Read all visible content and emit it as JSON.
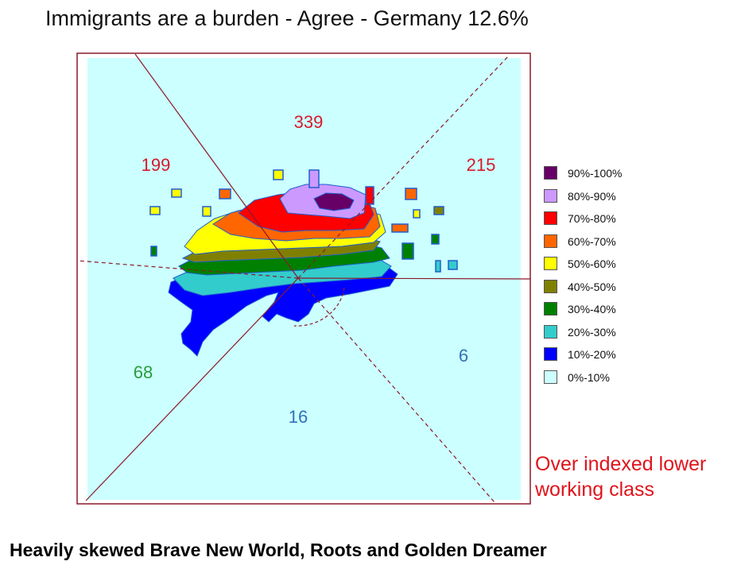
{
  "header": {
    "title": "Immigrants are a burden - Agree - Germany 12.6%"
  },
  "footer": {
    "text": "Heavily skewed Brave New World, Roots and Golden Dreamer"
  },
  "annotation": {
    "text": "Over indexed lower working class"
  },
  "chart_data": {
    "type": "heatmap",
    "title": "Immigrants are a burden - Agree - Germany 12.6%",
    "background_color": "#ccffff",
    "segment_counts": [
      {
        "value": "339",
        "color": "#d8192c"
      },
      {
        "value": "199",
        "color": "#d8192c"
      },
      {
        "value": "215",
        "color": "#d8192c"
      },
      {
        "value": "68",
        "color": "#2a9d3a"
      },
      {
        "value": "16",
        "color": "#2e73b8"
      },
      {
        "value": "6",
        "color": "#2e73b8"
      }
    ],
    "legend": {
      "placement": "right",
      "items": [
        {
          "label": "90%-100%",
          "color": "#660066"
        },
        {
          "label": "80%-90%",
          "color": "#cc99ff"
        },
        {
          "label": "70%-80%",
          "color": "#ff0000"
        },
        {
          "label": "60%-70%",
          "color": "#ff6600"
        },
        {
          "label": "50%-60%",
          "color": "#ffff00"
        },
        {
          "label": "40%-50%",
          "color": "#808000"
        },
        {
          "label": "30%-40%",
          "color": "#008000"
        },
        {
          "label": "20%-30%",
          "color": "#33cccc"
        },
        {
          "label": "10%-20%",
          "color": "#0000ff"
        },
        {
          "label": "0%-10%",
          "color": "#ccffff"
        }
      ]
    }
  }
}
